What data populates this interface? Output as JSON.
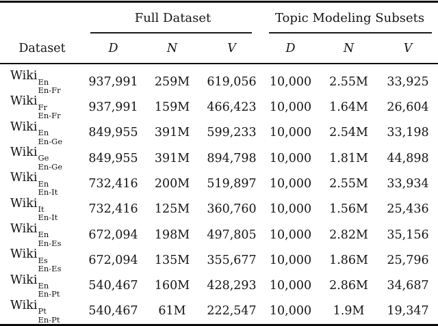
{
  "page": {
    "background": "#ffffff",
    "text_color": "#141414",
    "rule_color": "#0a0a0a"
  },
  "table": {
    "groups": [
      {
        "label": "Full Dataset"
      },
      {
        "label": "Topic Modeling Subsets"
      }
    ],
    "dataset_header": "Dataset",
    "column_headers": [
      "D",
      "N",
      "V",
      "D",
      "N",
      "V"
    ],
    "rows": [
      {
        "name": "Wiki",
        "superscript": "En",
        "subscript": "En-Fr",
        "values": [
          "937,991",
          "259M",
          "619,056",
          "10,000",
          "2.55M",
          "33,925"
        ]
      },
      {
        "name": "Wiki",
        "superscript": "Fr",
        "subscript": "En-Fr",
        "values": [
          "937,991",
          "159M",
          "466,423",
          "10,000",
          "1.64M",
          "26,604"
        ]
      },
      {
        "name": "Wiki",
        "superscript": "En",
        "subscript": "En-Ge",
        "values": [
          "849,955",
          "391M",
          "599,233",
          "10,000",
          "2.54M",
          "33,198"
        ]
      },
      {
        "name": "Wiki",
        "superscript": "Ge",
        "subscript": "En-Ge",
        "values": [
          "849,955",
          "391M",
          "894,798",
          "10,000",
          "1.81M",
          "44,898"
        ]
      },
      {
        "name": "Wiki",
        "superscript": "En",
        "subscript": "En-It",
        "values": [
          "732,416",
          "200M",
          "519,897",
          "10,000",
          "2.55M",
          "33,934"
        ]
      },
      {
        "name": "Wiki",
        "superscript": "It",
        "subscript": "En-It",
        "values": [
          "732,416",
          "125M",
          "360,760",
          "10,000",
          "1.56M",
          "25,436"
        ]
      },
      {
        "name": "Wiki",
        "superscript": "En",
        "subscript": "En-Es",
        "values": [
          "672,094",
          "198M",
          "497,805",
          "10,000",
          "2.82M",
          "35,156"
        ]
      },
      {
        "name": "Wiki",
        "superscript": "Es",
        "subscript": "En-Es",
        "values": [
          "672,094",
          "135M",
          "355,677",
          "10,000",
          "1.86M",
          "25,796"
        ]
      },
      {
        "name": "Wiki",
        "superscript": "En",
        "subscript": "En-Pt",
        "values": [
          "540,467",
          "160M",
          "428,293",
          "10,000",
          "2.86M",
          "34,687"
        ]
      },
      {
        "name": "Wiki",
        "superscript": "Pt",
        "subscript": "En-Pt",
        "values": [
          "540,467",
          "61M",
          "222,547",
          "10,000",
          "1.9M",
          "19,347"
        ]
      }
    ]
  }
}
